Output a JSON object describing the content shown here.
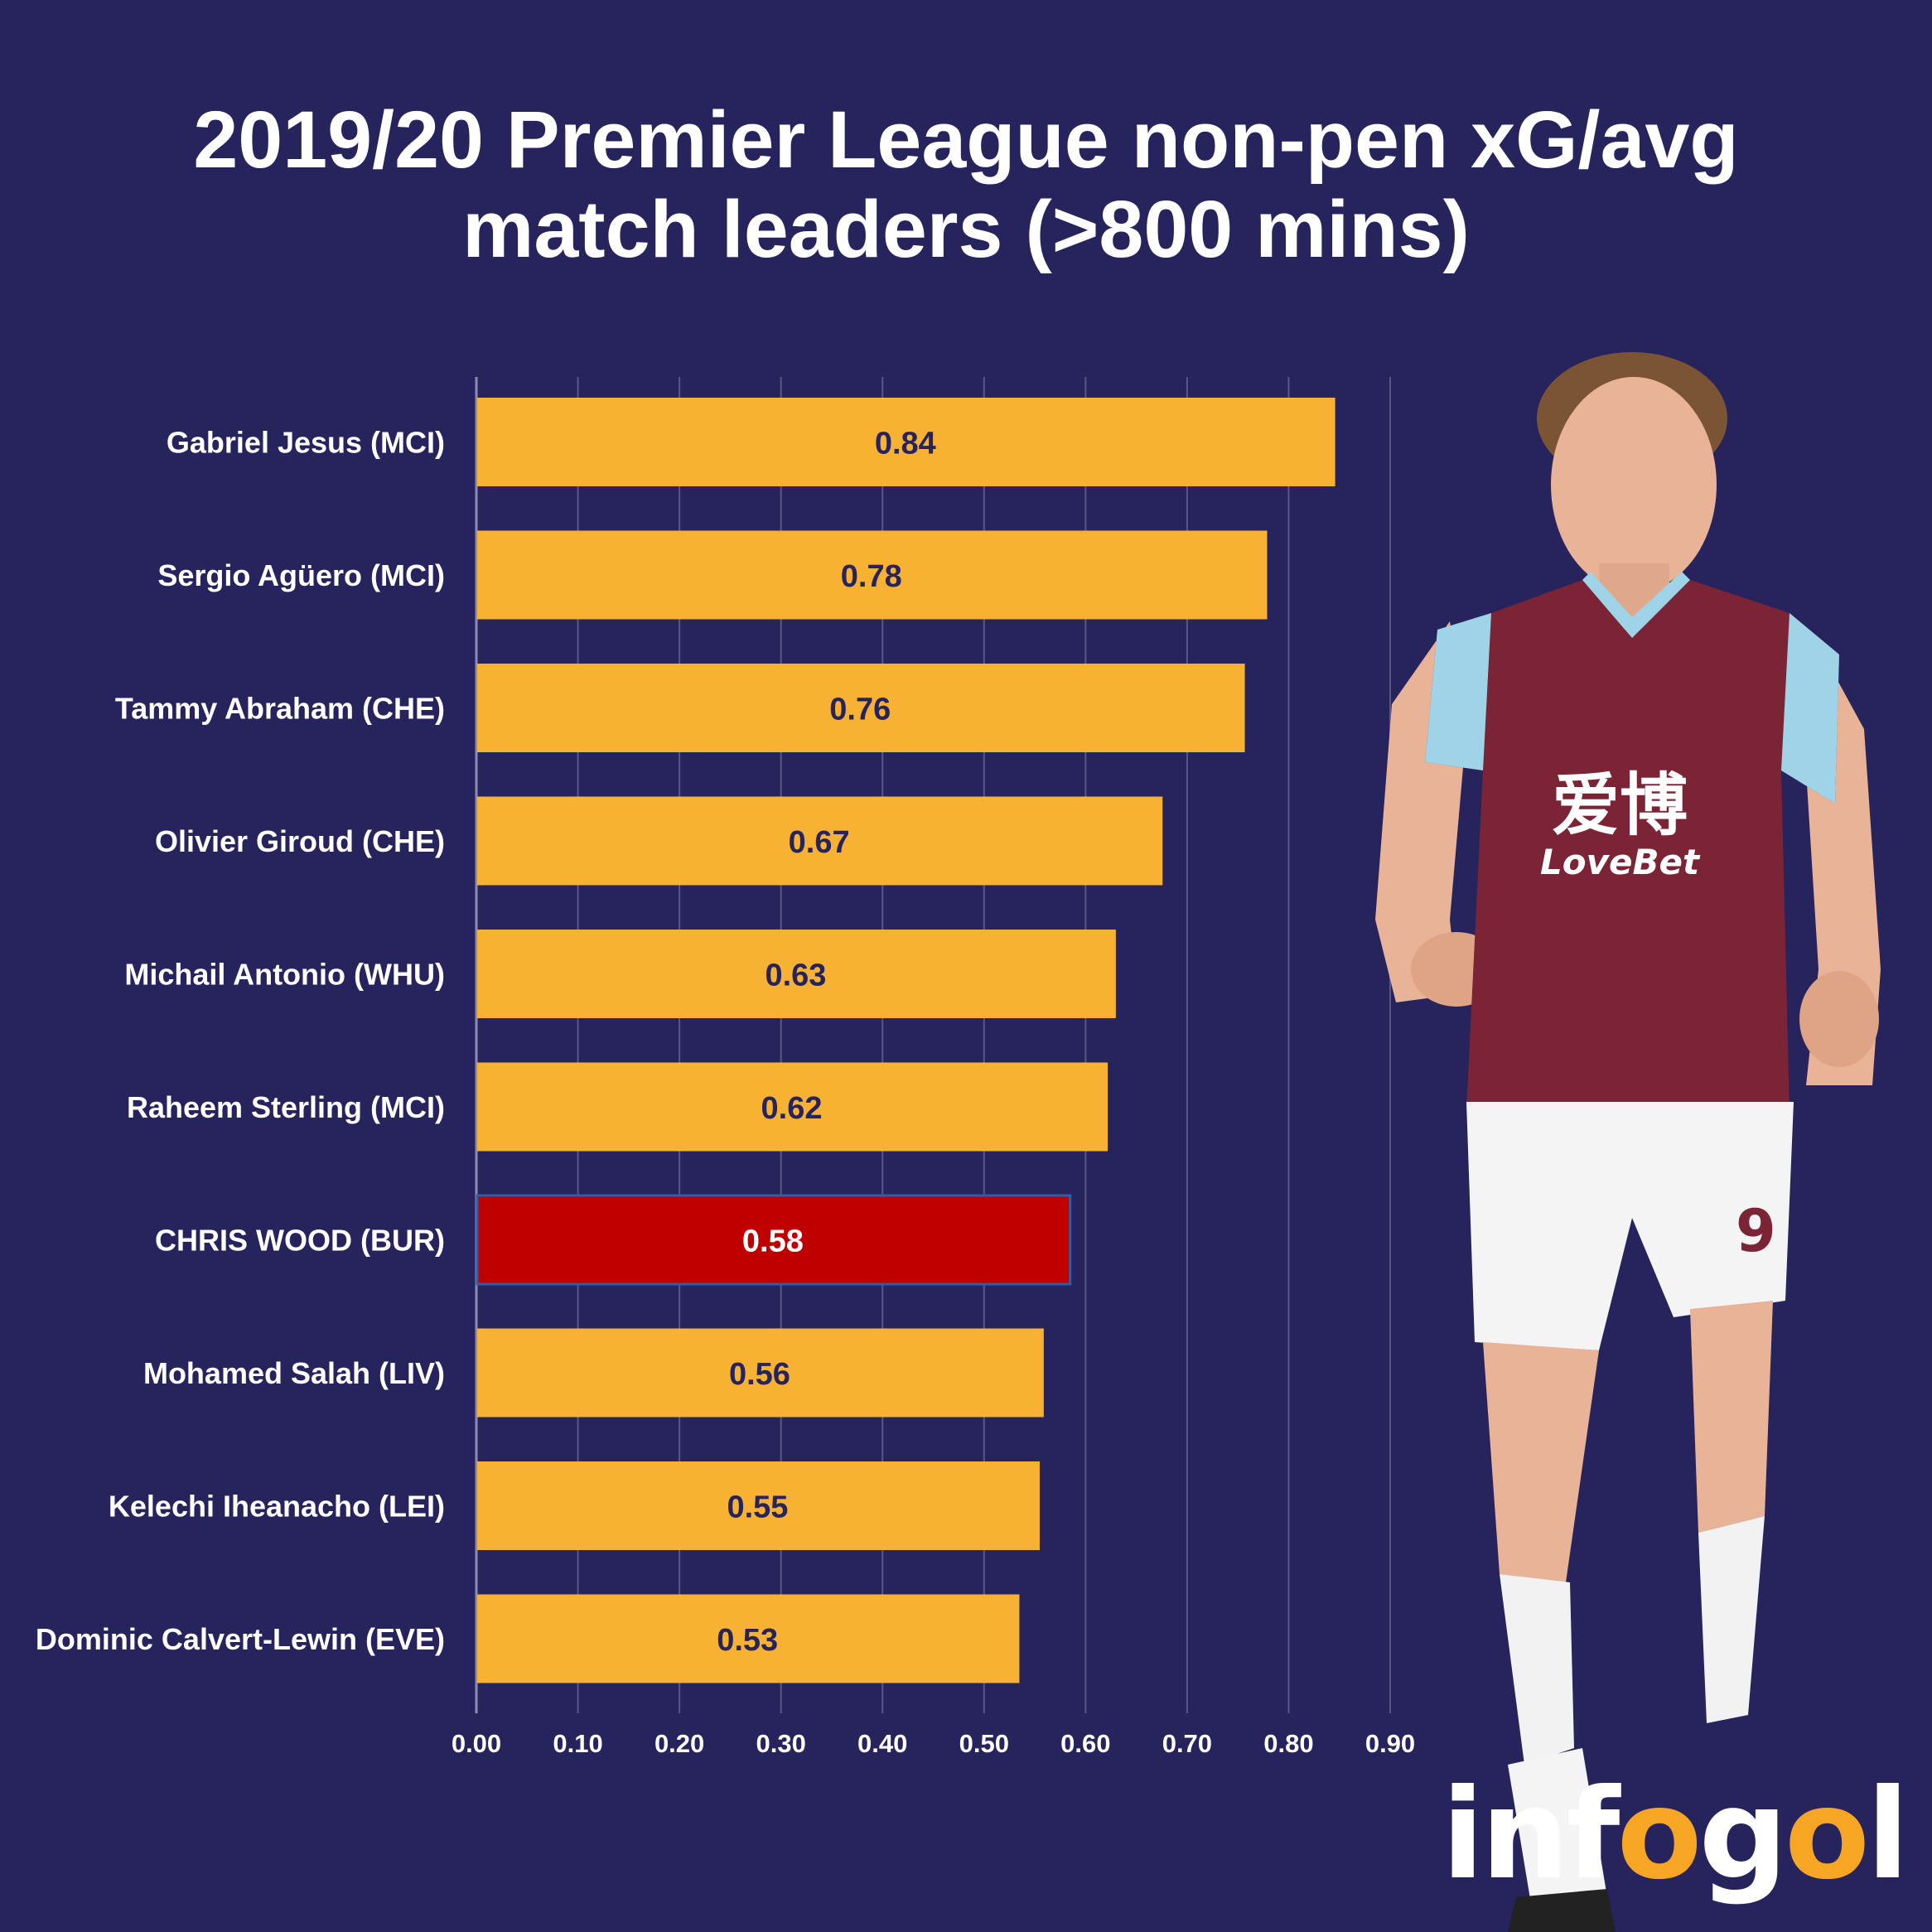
{
  "title": {
    "line1": "2019/20 Premier League non-pen xG/avg",
    "line2": "match leaders (>800 mins)"
  },
  "colors": {
    "background": "#27235c",
    "bar": "#f7b233",
    "highlight": "#c00000",
    "grid": "#5a5688",
    "label": "#ffffff",
    "value_text": "#27235c"
  },
  "chart_data": {
    "type": "bar",
    "orientation": "horizontal",
    "title": "2019/20 Premier League non-pen xG/avg match leaders (>800 mins)",
    "categories": [
      "Gabriel Jesus (MCI)",
      "Sergio Agüero (MCI)",
      "Tammy Abraham (CHE)",
      "Olivier Giroud (CHE)",
      "Michail Antonio (WHU)",
      "Raheem Sterling (MCI)",
      "CHRIS WOOD (BUR)",
      "Mohamed Salah (LIV)",
      "Kelechi Iheanacho (LEI)",
      "Dominic Calvert-Lewin (EVE)"
    ],
    "values": [
      0.845,
      0.778,
      0.756,
      0.675,
      0.629,
      0.621,
      0.584,
      0.558,
      0.554,
      0.534
    ],
    "value_labels": [
      "0.84",
      "0.78",
      "0.76",
      "0.67",
      "0.63",
      "0.62",
      "0.58",
      "0.56",
      "0.55",
      "0.53"
    ],
    "highlight_index": 6,
    "xlim": [
      0,
      0.9
    ],
    "xticks": [
      "0.00",
      "0.10",
      "0.20",
      "0.30",
      "0.40",
      "0.50",
      "0.60",
      "0.70",
      "0.80",
      "0.90"
    ],
    "grid": true,
    "xlabel": "",
    "ylabel": ""
  },
  "image": {
    "player_shirt_text": "LoveBet",
    "player_shirt_chinese": "爱博",
    "player_number": "9"
  },
  "logo": {
    "part1": "inf",
    "part2": "o",
    "part3": "g",
    "part4": "o",
    "part5": "l"
  }
}
